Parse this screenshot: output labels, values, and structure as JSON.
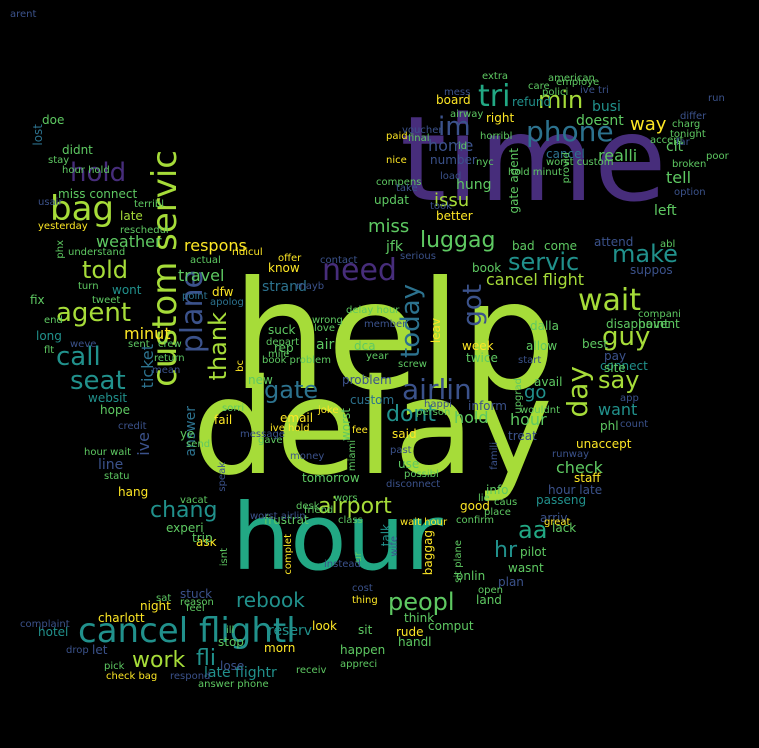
{
  "palette": {
    "background": "#000000",
    "lime": "#a6dc39",
    "green": "#5ec962",
    "teal": "#21918c",
    "sea": "#22a884",
    "blue": "#2c728e",
    "indigo": "#3b528b",
    "purple": "#472d7b",
    "deep": "#3e1f6b",
    "yellow": "#fde725"
  },
  "words": [
    {
      "text": "help",
      "color": "lime"
    },
    {
      "text": "delay",
      "color": "lime"
    },
    {
      "text": "time",
      "color": "purple"
    },
    {
      "text": "hour",
      "color": "sea"
    },
    {
      "text": "cancel flightl",
      "color": "teal"
    },
    {
      "text": "custom servic",
      "color": "lime"
    },
    {
      "text": "plane",
      "color": "indigo"
    },
    {
      "text": "bag",
      "color": "lime"
    },
    {
      "text": "hold",
      "color": "purple"
    },
    {
      "text": "im",
      "color": "indigo"
    },
    {
      "text": "phone",
      "color": "blue"
    },
    {
      "text": "min",
      "color": "lime"
    },
    {
      "text": "tri",
      "color": "sea"
    },
    {
      "text": "wait",
      "color": "lime"
    },
    {
      "text": "need",
      "color": "purple"
    },
    {
      "text": "airlin",
      "color": "indigo"
    },
    {
      "text": "day",
      "color": "lime"
    },
    {
      "text": "today",
      "color": "blue"
    },
    {
      "text": "got",
      "color": "indigo"
    },
    {
      "text": "gate",
      "color": "blue"
    },
    {
      "text": "seat",
      "color": "teal"
    },
    {
      "text": "call",
      "color": "teal"
    },
    {
      "text": "told",
      "color": "lime"
    },
    {
      "text": "agent",
      "color": "lime"
    },
    {
      "text": "thank",
      "color": "lime"
    },
    {
      "text": "servic",
      "color": "teal"
    },
    {
      "text": "make",
      "color": "teal"
    },
    {
      "text": "guy",
      "color": "lime"
    },
    {
      "text": "say",
      "color": "lime"
    },
    {
      "text": "peopl",
      "color": "green"
    },
    {
      "text": "rebook",
      "color": "teal"
    },
    {
      "text": "fli",
      "color": "teal"
    },
    {
      "text": "work",
      "color": "lime"
    },
    {
      "text": "chang",
      "color": "teal"
    },
    {
      "text": "airport",
      "color": "lime"
    },
    {
      "text": "dont",
      "color": "teal"
    },
    {
      "text": "aa",
      "color": "sea"
    },
    {
      "text": "hr",
      "color": "teal"
    },
    {
      "text": "luggag",
      "color": "green"
    },
    {
      "text": "miss",
      "color": "green"
    },
    {
      "text": "cancel flight",
      "color": "lime"
    },
    {
      "text": "way",
      "color": "yellow"
    },
    {
      "text": "home",
      "color": "indigo"
    },
    {
      "text": "realli",
      "color": "green"
    },
    {
      "text": "issu",
      "color": "lime"
    },
    {
      "text": "weather",
      "color": "green"
    },
    {
      "text": "respons",
      "color": "yellow"
    },
    {
      "text": "travel",
      "color": "green"
    },
    {
      "text": "minut",
      "color": "yellow"
    },
    {
      "text": "ticket",
      "color": "blue"
    },
    {
      "text": "ive",
      "color": "indigo"
    },
    {
      "text": "answer",
      "color": "blue"
    },
    {
      "text": "check",
      "color": "green"
    },
    {
      "text": "want",
      "color": "teal"
    },
    {
      "text": "hold",
      "color": "green"
    },
    {
      "text": "hour",
      "color": "green"
    },
    {
      "text": "go",
      "color": "teal"
    },
    {
      "text": "tell",
      "color": "green"
    },
    {
      "text": "left",
      "color": "green"
    },
    {
      "text": "clt",
      "color": "green"
    },
    {
      "text": "busi",
      "color": "teal"
    },
    {
      "text": "doesnt",
      "color": "green"
    },
    {
      "text": "right",
      "color": "yellow"
    },
    {
      "text": "refund",
      "color": "teal"
    },
    {
      "text": "board",
      "color": "yellow"
    },
    {
      "text": "hung",
      "color": "green"
    },
    {
      "text": "better",
      "color": "yellow"
    },
    {
      "text": "gate agent",
      "color": "green"
    },
    {
      "text": "jfk",
      "color": "green"
    },
    {
      "text": "bad",
      "color": "green"
    },
    {
      "text": "come",
      "color": "green"
    },
    {
      "text": "attend",
      "color": "indigo"
    },
    {
      "text": "suppos",
      "color": "indigo"
    },
    {
      "text": "book",
      "color": "green"
    },
    {
      "text": "know",
      "color": "yellow"
    },
    {
      "text": "strand",
      "color": "blue"
    },
    {
      "text": "suck",
      "color": "green"
    },
    {
      "text": "rep",
      "color": "green"
    },
    {
      "text": "air",
      "color": "green"
    },
    {
      "text": "dca",
      "color": "green"
    },
    {
      "text": "problem",
      "color": "indigo"
    },
    {
      "text": "custom",
      "color": "blue"
    },
    {
      "text": "email",
      "color": "yellow"
    },
    {
      "text": "fail",
      "color": "yellow"
    },
    {
      "text": "worst",
      "color": "green"
    },
    {
      "text": "said",
      "color": "yellow"
    },
    {
      "text": "use",
      "color": "green"
    },
    {
      "text": "tomorrow",
      "color": "green"
    },
    {
      "text": "frustrat",
      "color": "green"
    },
    {
      "text": "experi",
      "color": "green"
    },
    {
      "text": "ask",
      "color": "yellow"
    },
    {
      "text": "trip",
      "color": "green"
    },
    {
      "text": "late",
      "color": "lime"
    },
    {
      "text": "miss connect",
      "color": "green"
    },
    {
      "text": "didnt",
      "color": "green"
    },
    {
      "text": "doe",
      "color": "green"
    },
    {
      "text": "lost",
      "color": "blue"
    },
    {
      "text": "fix",
      "color": "green"
    },
    {
      "text": "long",
      "color": "teal"
    },
    {
      "text": "wont",
      "color": "teal"
    },
    {
      "text": "websit",
      "color": "teal"
    },
    {
      "text": "hope",
      "color": "green"
    },
    {
      "text": "line",
      "color": "indigo"
    },
    {
      "text": "hang",
      "color": "yellow"
    },
    {
      "text": "new",
      "color": "green"
    },
    {
      "text": "ye",
      "color": "green"
    },
    {
      "text": "dfw",
      "color": "yellow"
    },
    {
      "text": "staff",
      "color": "yellow"
    },
    {
      "text": "passeng",
      "color": "teal"
    },
    {
      "text": "arriv",
      "color": "indigo"
    },
    {
      "text": "good",
      "color": "yellow"
    },
    {
      "text": "talk",
      "color": "teal"
    },
    {
      "text": "baggag",
      "color": "yellow"
    },
    {
      "text": "onlin",
      "color": "green"
    },
    {
      "text": "night",
      "color": "yellow"
    },
    {
      "text": "stuck",
      "color": "indigo"
    },
    {
      "text": "look",
      "color": "yellow"
    },
    {
      "text": "sit",
      "color": "green"
    },
    {
      "text": "hotel",
      "color": "teal"
    },
    {
      "text": "let",
      "color": "indigo"
    },
    {
      "text": "reserv",
      "color": "teal"
    },
    {
      "text": "happen",
      "color": "green"
    },
    {
      "text": "rude",
      "color": "yellow"
    },
    {
      "text": "late flightr",
      "color": "teal"
    },
    {
      "text": "leav",
      "color": "yellow"
    },
    {
      "text": "week",
      "color": "yellow"
    },
    {
      "text": "pay",
      "color": "indigo"
    },
    {
      "text": "connect",
      "color": "teal"
    },
    {
      "text": "phl",
      "color": "green"
    },
    {
      "text": "unaccept",
      "color": "yellow"
    },
    {
      "text": "updat",
      "color": "green"
    },
    {
      "text": "number",
      "color": "indigo"
    },
    {
      "text": "cancel",
      "color": "blue"
    },
    {
      "text": "charlott",
      "color": "yellow"
    },
    {
      "text": "stop",
      "color": "green"
    },
    {
      "text": "lose",
      "color": "indigo"
    },
    {
      "text": "morn",
      "color": "yellow"
    },
    {
      "text": "handl",
      "color": "green"
    },
    {
      "text": "info",
      "color": "green"
    },
    {
      "text": "hour late",
      "color": "indigo"
    },
    {
      "text": "pilot",
      "color": "green"
    },
    {
      "text": "plan",
      "color": "indigo"
    },
    {
      "text": "land",
      "color": "green"
    },
    {
      "text": "think",
      "color": "green"
    },
    {
      "text": "comput",
      "color": "green"
    },
    {
      "text": "wasnt",
      "color": "green"
    },
    {
      "text": "lack",
      "color": "green"
    },
    {
      "text": "treat",
      "color": "indigo"
    },
    {
      "text": "inform",
      "color": "indigo"
    },
    {
      "text": "twice",
      "color": "green"
    },
    {
      "text": "allow",
      "color": "green"
    },
    {
      "text": "avail",
      "color": "green"
    },
    {
      "text": "dalla",
      "color": "green"
    },
    {
      "text": "disappoint",
      "color": "green"
    },
    {
      "text": "havent",
      "color": "green"
    },
    {
      "text": "best",
      "color": "green"
    },
    {
      "text": "site",
      "color": "green"
    },
    {
      "text": "yesterday",
      "color": "yellow"
    },
    {
      "text": "reschedul",
      "color": "green"
    },
    {
      "text": "understand",
      "color": "green"
    },
    {
      "text": "turn",
      "color": "green"
    },
    {
      "text": "tweet",
      "color": "green"
    },
    {
      "text": "point",
      "color": "blue"
    },
    {
      "text": "apolog",
      "color": "blue"
    },
    {
      "text": "ridicul",
      "color": "yellow"
    },
    {
      "text": "actual",
      "color": "green"
    },
    {
      "text": "offer",
      "color": "yellow"
    },
    {
      "text": "contact",
      "color": "indigo"
    },
    {
      "text": "love",
      "color": "green"
    },
    {
      "text": "wrong",
      "color": "green"
    },
    {
      "text": "employe",
      "color": "green"
    },
    {
      "text": "polici",
      "color": "green"
    },
    {
      "text": "differ",
      "color": "indigo"
    },
    {
      "text": "charg",
      "color": "green"
    },
    {
      "text": "run",
      "color": "indigo"
    },
    {
      "text": "poor",
      "color": "green"
    },
    {
      "text": "broken",
      "color": "green"
    },
    {
      "text": "final",
      "color": "green"
    },
    {
      "text": "nice",
      "color": "yellow"
    },
    {
      "text": "paid",
      "color": "yellow"
    },
    {
      "text": "compens",
      "color": "green"
    },
    {
      "text": "person",
      "color": "green"
    },
    {
      "text": "desk",
      "color": "green"
    },
    {
      "text": "friend",
      "color": "green"
    },
    {
      "text": "reason",
      "color": "green"
    },
    {
      "text": "sat",
      "color": "green"
    },
    {
      "text": "feel",
      "color": "green"
    },
    {
      "text": "check bag",
      "color": "yellow"
    },
    {
      "text": "respond",
      "color": "indigo"
    },
    {
      "text": "answer phone",
      "color": "green"
    },
    {
      "text": "appreci",
      "color": "green"
    },
    {
      "text": "receiv",
      "color": "green"
    },
    {
      "text": "complaint",
      "color": "indigo"
    },
    {
      "text": "drop",
      "color": "indigo"
    },
    {
      "text": "pick",
      "color": "green"
    },
    {
      "text": "credit",
      "color": "indigo"
    },
    {
      "text": "hour wait",
      "color": "green"
    },
    {
      "text": "statu",
      "color": "green"
    },
    {
      "text": "speak",
      "color": "indigo"
    },
    {
      "text": "gave",
      "color": "green"
    },
    {
      "text": "wouldnt",
      "color": "green"
    },
    {
      "text": "ive hold",
      "color": "yellow"
    },
    {
      "text": "happi",
      "color": "indigo"
    },
    {
      "text": "mile",
      "color": "green"
    },
    {
      "text": "depart",
      "color": "green"
    },
    {
      "text": "voucher",
      "color": "indigo"
    },
    {
      "text": "airway",
      "color": "green"
    },
    {
      "text": "horribl",
      "color": "green"
    },
    {
      "text": "extra",
      "color": "green"
    },
    {
      "text": "mess",
      "color": "indigo"
    },
    {
      "text": "care",
      "color": "green"
    },
    {
      "text": "accept",
      "color": "green"
    },
    {
      "text": "tonight",
      "color": "green"
    },
    {
      "text": "option",
      "color": "indigo"
    },
    {
      "text": "abl",
      "color": "green"
    },
    {
      "text": "compani",
      "color": "green"
    },
    {
      "text": "american",
      "color": "green"
    },
    {
      "text": "far",
      "color": "indigo"
    },
    {
      "text": "crew",
      "color": "green"
    },
    {
      "text": "return",
      "color": "green"
    },
    {
      "text": "mean",
      "color": "indigo"
    },
    {
      "text": "fee",
      "color": "yellow"
    },
    {
      "text": "miami",
      "color": "green"
    },
    {
      "text": "wait hour",
      "color": "yellow"
    },
    {
      "text": "place",
      "color": "green"
    },
    {
      "text": "caus",
      "color": "green"
    },
    {
      "text": "great",
      "color": "yellow"
    },
    {
      "text": "isnt",
      "color": "green"
    },
    {
      "text": "complet",
      "color": "yellow"
    },
    {
      "text": "ur",
      "color": "green"
    },
    {
      "text": "thing",
      "color": "yellow"
    },
    {
      "text": "instead",
      "color": "indigo"
    },
    {
      "text": "cost",
      "color": "indigo"
    },
    {
      "text": "ill",
      "color": "green"
    },
    {
      "text": "past",
      "color": "indigo"
    },
    {
      "text": "disconnect",
      "color": "indigo"
    },
    {
      "text": "possibl",
      "color": "green"
    },
    {
      "text": "money",
      "color": "indigo"
    },
    {
      "text": "class",
      "color": "green"
    },
    {
      "text": "vacat",
      "color": "green"
    },
    {
      "text": "member",
      "color": "indigo"
    },
    {
      "text": "joke",
      "color": "yellow"
    },
    {
      "text": "message",
      "color": "indigo"
    },
    {
      "text": "sorri",
      "color": "green"
    },
    {
      "text": "send",
      "color": "green"
    },
    {
      "text": "bc",
      "color": "yellow"
    },
    {
      "text": "book problem",
      "color": "green"
    },
    {
      "text": "stay",
      "color": "green"
    },
    {
      "text": "hour hold",
      "color": "green"
    },
    {
      "text": "usair",
      "color": "indigo"
    },
    {
      "text": "terribl",
      "color": "green"
    },
    {
      "text": "serious",
      "color": "indigo"
    },
    {
      "text": "take",
      "color": "indigo"
    },
    {
      "text": "load",
      "color": "indigo"
    },
    {
      "text": "took",
      "color": "indigo"
    },
    {
      "text": "provid",
      "color": "green"
    },
    {
      "text": "hold minut",
      "color": "green"
    },
    {
      "text": "worst custom",
      "color": "green"
    },
    {
      "text": "delay hour",
      "color": "green"
    },
    {
      "text": "worst airlin",
      "color": "indigo"
    },
    {
      "text": "phx",
      "color": "green"
    },
    {
      "text": "flt",
      "color": "green"
    },
    {
      "text": "end",
      "color": "green"
    },
    {
      "text": "sent",
      "color": "green"
    },
    {
      "text": "weve",
      "color": "indigo"
    },
    {
      "text": "wife",
      "color": "indigo"
    },
    {
      "text": "sit plane",
      "color": "green"
    },
    {
      "text": "open",
      "color": "green"
    },
    {
      "text": "lie",
      "color": "green"
    },
    {
      "text": "famili",
      "color": "indigo"
    },
    {
      "text": "runway",
      "color": "indigo"
    },
    {
      "text": "count",
      "color": "indigo"
    },
    {
      "text": "app",
      "color": "indigo"
    },
    {
      "text": "ive tri",
      "color": "indigo"
    },
    {
      "text": "id",
      "color": "green"
    },
    {
      "text": "nyc",
      "color": "green"
    },
    {
      "text": "screw",
      "color": "green"
    },
    {
      "text": "year",
      "color": "green"
    },
    {
      "text": "wors",
      "color": "green"
    },
    {
      "text": "mayb",
      "color": "indigo"
    },
    {
      "text": "start",
      "color": "indigo"
    },
    {
      "text": "upgrad",
      "color": "green"
    },
    {
      "text": "confirm",
      "color": "green"
    },
    {
      "text": "arent",
      "color": "indigo"
    }
  ]
}
